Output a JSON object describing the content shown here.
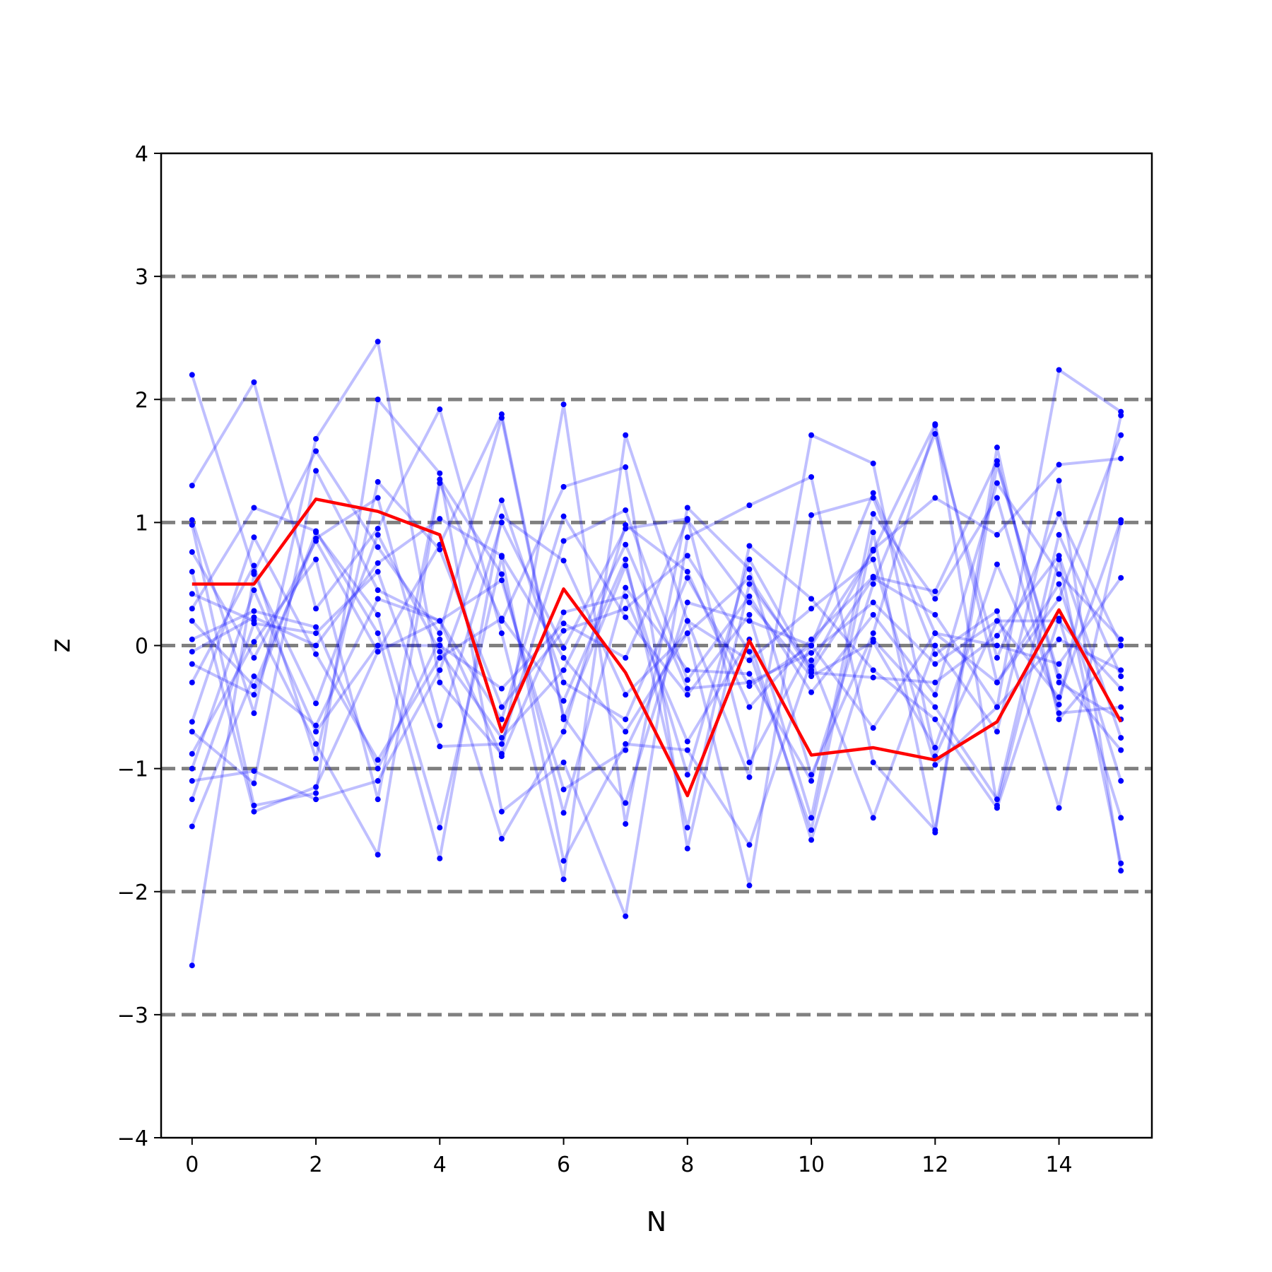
{
  "chart_data": {
    "type": "line",
    "title": "",
    "xlabel": "N",
    "ylabel": "z",
    "xlim": [
      -0.5,
      15.5
    ],
    "ylim": [
      -4,
      4
    ],
    "xticks": [
      0,
      2,
      4,
      6,
      8,
      10,
      12,
      14
    ],
    "yticks": [
      -4,
      -3,
      -2,
      -1,
      0,
      1,
      2,
      3,
      4
    ],
    "ytick_labels": [
      "−4",
      "−3",
      "−2",
      "−1",
      "0",
      "1",
      "2",
      "3",
      "4"
    ],
    "reference_lines": [
      -3,
      -2,
      -1,
      0,
      1,
      2,
      3
    ],
    "reference_line_color": "#808080",
    "background_series_color": "#0000ff",
    "highlight_series_color": "#ff0000",
    "x": [
      0,
      1,
      2,
      3,
      4,
      5,
      6,
      7,
      8,
      9,
      10,
      11,
      12,
      13,
      14,
      15
    ],
    "highlight": [
      0.5,
      0.5,
      1.19,
      1.09,
      0.9,
      -0.7,
      0.46,
      -0.22,
      -1.22,
      0.04,
      -0.89,
      -0.83,
      -0.93,
      -0.62,
      0.29,
      -0.62
    ],
    "background_series": [
      [
        2.2,
        0.6,
        1.58,
        0.8,
        0.1,
        1.85,
        -0.6,
        0.65,
        -1.05,
        0.7,
        -0.2,
        0.55,
        0.25,
        -0.5,
        2.24,
        1.9
      ],
      [
        1.3,
        2.14,
        0.3,
        0.95,
        1.92,
        0.1,
        -1.9,
        1.71,
        0.2,
        -1.07,
        1.71,
        1.48,
        -0.9,
        0.2,
        -0.42,
        1.02
      ],
      [
        1.02,
        -0.55,
        1.68,
        2.47,
        -0.3,
        -0.88,
        1.96,
        -1.45,
        1.12,
        0.62,
        -1.05,
        0.1,
        1.79,
        -1.3,
        0.7,
        -1.77
      ],
      [
        0.98,
        -1.3,
        -1.2,
        2.0,
        1.4,
        -1.35,
        -0.95,
        -2.2,
        0.88,
        1.14,
        1.37,
        -0.95,
        -1.5,
        1.61,
        -0.6,
        0.0
      ],
      [
        0.42,
        0.2,
        -0.8,
        -1.7,
        1.32,
        0.2,
        1.29,
        1.45,
        -1.65,
        0.5,
        -0.17,
        0.78,
        1.2,
        0.9,
        1.47,
        1.52
      ],
      [
        0.3,
        1.12,
        0.93,
        0.1,
        -1.73,
        1.05,
        0.69,
        -0.4,
        0.1,
        -1.95,
        1.06,
        1.2,
        -0.07,
        0.28,
        -1.32,
        1.0
      ],
      [
        0.05,
        0.28,
        0.15,
        -1.0,
        0.05,
        -1.57,
        -0.7,
        0.98,
        0.6,
        -0.5,
        0.05,
        0.56,
        0.44,
        1.5,
        -0.3,
        -0.6
      ],
      [
        -0.15,
        -0.4,
        0.92,
        0.25,
        -1.48,
        0.72,
        -1.75,
        -0.8,
        -0.85,
        -1.62,
        -0.12,
        -1.4,
        0.0,
        -0.7,
        1.34,
        -1.83
      ],
      [
        -0.3,
        0.65,
        -0.92,
        1.33,
        0.78,
        -0.5,
        0.12,
        0.3,
        0.73,
        -0.05,
        -1.5,
        0.92,
        -1.52,
        1.47,
        -0.25,
        -0.85
      ],
      [
        -0.62,
        0.88,
        -0.07,
        -0.93,
        -0.1,
        0.22,
        -0.45,
        0.7,
        -1.48,
        0.81,
        0.38,
        -0.2,
        -0.6,
        -1.32,
        0.22,
        -1.4
      ],
      [
        -0.7,
        -1.12,
        1.42,
        0.45,
        0.2,
        -0.6,
        1.05,
        0.23,
        -0.4,
        0.25,
        -1.4,
        1.07,
        0.38,
        1.2,
        -0.55,
        -0.5
      ],
      [
        -0.88,
        0.03,
        0.7,
        -1.25,
        1.35,
        0.58,
        -1.36,
        0.47,
        -0.2,
        -0.23,
        -1.1,
        0.5,
        1.72,
        -0.1,
        1.07,
        0.0
      ],
      [
        -1.0,
        0.45,
        -0.7,
        0.0,
        0.0,
        -0.35,
        0.18,
        -0.1,
        1.02,
        0.35,
        -0.25,
        0.03,
        -0.83,
        0.66,
        -0.48,
        1.87
      ],
      [
        -1.1,
        -1.02,
        -1.25,
        -1.1,
        -0.2,
        1.18,
        -0.3,
        -0.6,
        0.55,
        -0.33,
        0.0,
        -0.67,
        0.1,
        -0.3,
        0.5,
        -1.1
      ],
      [
        -1.25,
        0.18,
        0.1,
        0.6,
        -0.82,
        -0.8,
        0.85,
        1.1,
        -0.28,
        0.4,
        -0.38,
        0.25,
        -0.4,
        1.32,
        0.58,
        0.05
      ],
      [
        -1.47,
        -0.25,
        -0.65,
        0.38,
        0.2,
        0.53,
        -1.17,
        -0.85,
        0.2,
        -0.12,
        0.3,
        0.7,
        -0.97,
        -0.5,
        0.05,
        -0.2
      ],
      [
        -2.6,
        0.58,
        -0.47,
        0.9,
        -0.05,
        -0.75,
        -0.2,
        0.82,
        -0.35,
        -0.3,
        -0.06,
        0.35,
        -0.15,
        0.2,
        0.2,
        -0.35
      ],
      [
        0.76,
        -0.1,
        0.85,
        -0.05,
        0.82,
        1.88,
        -0.58,
        -1.28,
        0.35,
        0.2,
        0.0,
        0.77,
        1.8,
        -0.3,
        0.38,
        1.71
      ],
      [
        0.2,
        -0.33,
        0.87,
        1.2,
        -0.65,
        1.0,
        -0.02,
        0.95,
        1.03,
        -0.95,
        0.0,
        1.24,
        0.1,
        0.0,
        -0.15,
        0.55
      ],
      [
        0.6,
        -1.35,
        -1.15,
        -0.05,
        0.2,
        -0.9,
        0.27,
        0.4,
        -0.78,
        0.05,
        -1.58,
        0.05,
        -0.5,
        -1.25,
        0.9,
        -0.25
      ],
      [
        -0.05,
        0.23,
        0.0,
        0.67,
        1.03,
        0.73,
        -0.1,
        -0.7,
        0.1,
        0.55,
        -0.22,
        -0.26,
        -0.3,
        0.08,
        0.73,
        -0.75
      ]
    ]
  }
}
